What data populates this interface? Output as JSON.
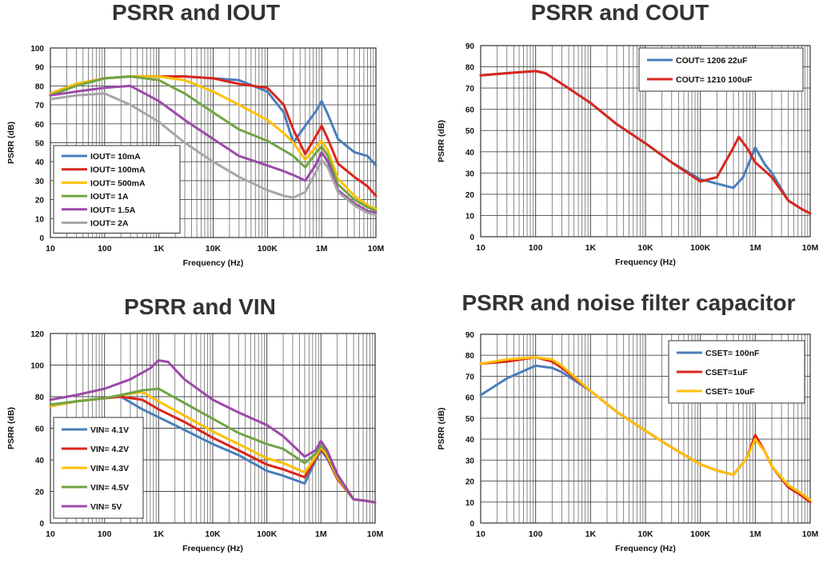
{
  "chart_data": [
    {
      "type": "line",
      "title": "PSRR and IOUT",
      "xlabel": "Frequency (Hz)",
      "ylabel": "PSRR (dB)",
      "xscale": "log",
      "xlim": [
        10,
        10000000
      ],
      "ylim": [
        0,
        100
      ],
      "yticks": [
        0,
        10,
        20,
        30,
        40,
        50,
        60,
        70,
        80,
        90,
        100
      ],
      "xtick_labels": [
        "10",
        "100",
        "1K",
        "10K",
        "100K",
        "1M",
        "10M"
      ],
      "grid": true,
      "legend_position": "lower-left",
      "series": [
        {
          "name": "IOUT= 10mA",
          "color": "#4a7ebb",
          "x": [
            10,
            30,
            100,
            300,
            1000,
            3000,
            10000,
            30000,
            100000,
            200000,
            300000,
            500000,
            800000,
            1000000,
            1300000,
            2000000,
            4000000,
            7000000,
            10000000
          ],
          "y": [
            76,
            81,
            84,
            85,
            85,
            85,
            84,
            83,
            77,
            66,
            50,
            59,
            67,
            72,
            65,
            52,
            45,
            43,
            38
          ]
        },
        {
          "name": "IOUT= 100mA",
          "color": "#d9261c",
          "x": [
            10,
            30,
            100,
            300,
            1000,
            3000,
            10000,
            30000,
            100000,
            200000,
            300000,
            500000,
            800000,
            1000000,
            1300000,
            2000000,
            4000000,
            7000000,
            10000000
          ],
          "y": [
            76,
            81,
            84,
            85,
            85,
            85,
            84,
            81,
            79,
            70,
            57,
            44,
            54,
            59,
            52,
            39,
            32,
            27,
            22
          ]
        },
        {
          "name": "IOUT= 500mA",
          "color": "#ffc000",
          "x": [
            10,
            30,
            100,
            300,
            1000,
            3000,
            10000,
            30000,
            100000,
            200000,
            300000,
            500000,
            800000,
            1000000,
            1300000,
            2000000,
            4000000,
            7000000,
            10000000
          ],
          "y": [
            76,
            81,
            84,
            85,
            85,
            83,
            77,
            70,
            62,
            55,
            50,
            41,
            48,
            51,
            46,
            31,
            22,
            17,
            15
          ]
        },
        {
          "name": "IOUT= 1A",
          "color": "#6fa544",
          "x": [
            10,
            30,
            100,
            300,
            1000,
            3000,
            10000,
            30000,
            100000,
            200000,
            300000,
            500000,
            800000,
            1000000,
            1300000,
            2000000,
            4000000,
            7000000,
            10000000
          ],
          "y": [
            75,
            80,
            84,
            85,
            83,
            76,
            66,
            57,
            51,
            46,
            43,
            37,
            45,
            48,
            43,
            28,
            20,
            16,
            14
          ]
        },
        {
          "name": "IOUT= 1.5A",
          "color": "#9b4aa8",
          "x": [
            10,
            30,
            100,
            300,
            1000,
            3000,
            10000,
            30000,
            100000,
            200000,
            300000,
            500000,
            800000,
            1000000,
            1300000,
            2000000,
            4000000,
            7000000,
            10000000
          ],
          "y": [
            75,
            77,
            79,
            80,
            72,
            62,
            52,
            43,
            38,
            35,
            33,
            30,
            39,
            45,
            40,
            25,
            18,
            14,
            13
          ]
        },
        {
          "name": "IOUT= 2A",
          "color": "#a6a6a6",
          "x": [
            10,
            30,
            100,
            300,
            1000,
            3000,
            10000,
            30000,
            100000,
            200000,
            300000,
            500000,
            800000,
            1000000,
            1300000,
            2000000,
            4000000,
            7000000,
            10000000
          ],
          "y": [
            73,
            75,
            76,
            70,
            61,
            50,
            40,
            32,
            25,
            22,
            21,
            24,
            35,
            41,
            37,
            24,
            17,
            13,
            12
          ]
        }
      ]
    },
    {
      "type": "line",
      "title": "PSRR and COUT",
      "xlabel": "Frequency (Hz)",
      "ylabel": "PSRR (dB)",
      "xscale": "log",
      "xlim": [
        10,
        10000000
      ],
      "ylim": [
        0,
        90
      ],
      "yticks": [
        0,
        10,
        20,
        30,
        40,
        50,
        60,
        70,
        80,
        90
      ],
      "xtick_labels": [
        "10",
        "100",
        "1K",
        "10K",
        "100K",
        "1M",
        "10M"
      ],
      "grid": true,
      "legend_position": "top-right",
      "series": [
        {
          "name": "COUT= 1206 22uF",
          "color": "#4a7ebb",
          "x": [
            10,
            30,
            100,
            150,
            300,
            1000,
            3000,
            10000,
            30000,
            100000,
            200000,
            400000,
            600000,
            1000000,
            1500000,
            2000000,
            4000000,
            7000000,
            10000000
          ],
          "y": [
            76,
            77,
            78,
            77,
            72,
            63,
            53,
            44,
            35,
            27,
            25,
            23,
            28,
            42,
            34,
            30,
            17,
            13,
            11
          ]
        },
        {
          "name": "COUT= 1210 100uF",
          "color": "#d9261c",
          "x": [
            10,
            30,
            100,
            150,
            300,
            1000,
            3000,
            10000,
            30000,
            100000,
            200000,
            400000,
            500000,
            700000,
            1000000,
            1500000,
            2000000,
            4000000,
            7000000,
            10000000
          ],
          "y": [
            76,
            77,
            78,
            77,
            72,
            63,
            53,
            44,
            35,
            26,
            28,
            42,
            47,
            42,
            35,
            31,
            28,
            17,
            13,
            11
          ]
        }
      ]
    },
    {
      "type": "line",
      "title": "PSRR and VIN",
      "xlabel": "Frequency (Hz)",
      "ylabel": "PSRR (dB)",
      "xscale": "log",
      "xlim": [
        10,
        10000000
      ],
      "ylim": [
        0,
        120
      ],
      "yticks": [
        0,
        20,
        40,
        60,
        80,
        100,
        120
      ],
      "xtick_labels": [
        "10",
        "100",
        "1K",
        "10K",
        "100K",
        "1M",
        "10M"
      ],
      "grid": true,
      "legend_position": "lower-left",
      "series": [
        {
          "name": "VIN= 4.1V",
          "color": "#4a7ebb",
          "x": [
            10,
            30,
            100,
            200,
            500,
            1000,
            3000,
            10000,
            30000,
            100000,
            200000,
            500000,
            800000,
            1000000,
            1300000,
            2000000,
            4000000,
            7000000,
            10000000
          ],
          "y": [
            74,
            77,
            79,
            80,
            72,
            67,
            59,
            50,
            43,
            33,
            30,
            25,
            40,
            46,
            41,
            28,
            15,
            14,
            13
          ]
        },
        {
          "name": "VIN= 4.2V",
          "color": "#d9261c",
          "x": [
            10,
            30,
            100,
            200,
            500,
            1000,
            3000,
            10000,
            30000,
            100000,
            200000,
            500000,
            800000,
            1000000,
            1300000,
            2000000,
            4000000,
            7000000,
            10000000
          ],
          "y": [
            74,
            77,
            79,
            80,
            78,
            72,
            64,
            54,
            46,
            37,
            34,
            29,
            41,
            47,
            42,
            28,
            15,
            14,
            13
          ]
        },
        {
          "name": "VIN= 4.3V",
          "color": "#ffc000",
          "x": [
            10,
            30,
            100,
            200,
            500,
            1000,
            3000,
            10000,
            30000,
            100000,
            200000,
            500000,
            800000,
            1000000,
            1300000,
            2000000,
            4000000,
            7000000,
            10000000
          ],
          "y": [
            74,
            77,
            79,
            81,
            83,
            77,
            68,
            58,
            50,
            41,
            38,
            32,
            42,
            48,
            43,
            29,
            15,
            14,
            13
          ]
        },
        {
          "name": "VIN= 4.5V",
          "color": "#6fa544",
          "x": [
            10,
            30,
            100,
            200,
            500,
            1000,
            3000,
            10000,
            30000,
            100000,
            200000,
            500000,
            800000,
            1000000,
            1300000,
            2000000,
            4000000,
            7000000,
            10000000
          ],
          "y": [
            75,
            77,
            79,
            81,
            84,
            85,
            76,
            66,
            57,
            50,
            47,
            38,
            44,
            49,
            45,
            30,
            15,
            14,
            13
          ]
        },
        {
          "name": "VIN= 5V",
          "color": "#9b4aa8",
          "x": [
            10,
            30,
            100,
            300,
            700,
            1000,
            1500,
            3000,
            10000,
            30000,
            100000,
            200000,
            500000,
            800000,
            1000000,
            1300000,
            2000000,
            4000000,
            7000000,
            10000000
          ],
          "y": [
            78,
            81,
            85,
            91,
            98,
            103,
            102,
            91,
            78,
            70,
            62,
            55,
            42,
            46,
            52,
            46,
            31,
            15,
            14,
            13
          ]
        }
      ]
    },
    {
      "type": "line",
      "title": "PSRR and noise filter capacitor",
      "xlabel": "Frequency (Hz)",
      "ylabel": "PSRR (dB)",
      "xscale": "log",
      "xlim": [
        10,
        10000000
      ],
      "ylim": [
        0,
        90
      ],
      "yticks": [
        0,
        10,
        20,
        30,
        40,
        50,
        60,
        70,
        80,
        90
      ],
      "xtick_labels": [
        "10",
        "100",
        "1K",
        "10K",
        "100K",
        "1M",
        "10M"
      ],
      "grid": true,
      "legend_position": "top-right",
      "series": [
        {
          "name": "CSET= 100nF",
          "color": "#4a7ebb",
          "x": [
            10,
            30,
            100,
            200,
            300,
            1000,
            3000,
            10000,
            30000,
            100000,
            200000,
            400000,
            700000,
            1000000,
            1500000,
            2000000,
            4000000,
            7000000,
            10000000
          ],
          "y": [
            61,
            69,
            75,
            74,
            72,
            63,
            53,
            44,
            36,
            28,
            25,
            23,
            31,
            41,
            34,
            27,
            17,
            13,
            11
          ]
        },
        {
          "name": "CSET=1uF",
          "color": "#d9261c",
          "x": [
            10,
            30,
            100,
            200,
            300,
            1000,
            3000,
            10000,
            30000,
            100000,
            200000,
            400000,
            700000,
            1000000,
            1500000,
            2000000,
            4000000,
            7000000,
            10000000
          ],
          "y": [
            76,
            77,
            79,
            77,
            74,
            63,
            53,
            44,
            36,
            28,
            25,
            23,
            31,
            42,
            34,
            27,
            17,
            13,
            10
          ]
        },
        {
          "name": "CSET= 10uF",
          "color": "#ffc000",
          "x": [
            10,
            30,
            100,
            200,
            300,
            1000,
            3000,
            10000,
            30000,
            100000,
            200000,
            400000,
            700000,
            1000000,
            1500000,
            2000000,
            4000000,
            7000000,
            10000000
          ],
          "y": [
            76,
            78,
            79,
            78,
            75,
            63,
            53,
            44,
            36,
            28,
            25,
            23,
            31,
            40,
            34,
            27,
            18,
            14,
            11
          ]
        }
      ]
    }
  ]
}
